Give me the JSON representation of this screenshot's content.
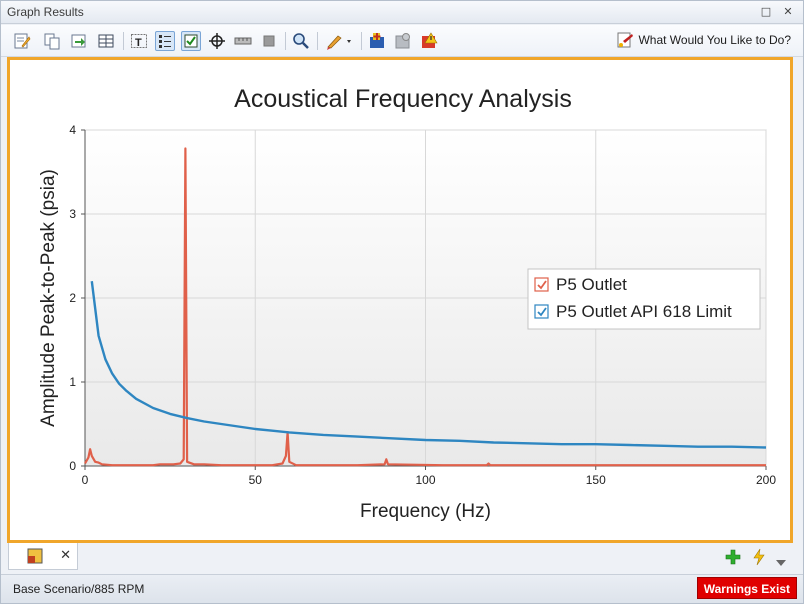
{
  "window": {
    "title": "Graph Results",
    "btn_restore": "□",
    "btn_close": "✕"
  },
  "toolbar": {
    "help_label": "What Would You Like to Do?",
    "icons": [
      "edit-icon",
      "copy-icon",
      "export-icon",
      "table-icon",
      "text-icon",
      "legend-icon",
      "checkbox-icon",
      "crosshair-icon",
      "ruler-icon",
      "stop-icon",
      "zoom-icon",
      "pen-icon",
      "add-graph-icon",
      "gear-icon",
      "warning-icon"
    ]
  },
  "chart_data": {
    "type": "line",
    "title": "Acoustical Frequency Analysis",
    "xlabel": "Frequency (Hz)",
    "ylabel": "Amplitude Peak-to-Peak (psia)",
    "xlim": [
      0,
      200
    ],
    "ylim": [
      0,
      4
    ],
    "xticks": [
      "0",
      "50",
      "100",
      "150",
      "200"
    ],
    "yticks": [
      "0",
      "1",
      "2",
      "3",
      "4"
    ],
    "grid": true,
    "legend_position": "right",
    "series": [
      {
        "name": "P5 Outlet",
        "color": "#e0604a",
        "checked": true,
        "points": [
          [
            0,
            0.03
          ],
          [
            1,
            0.1
          ],
          [
            1.5,
            0.2
          ],
          [
            2,
            0.12
          ],
          [
            3,
            0.05
          ],
          [
            4,
            0.04
          ],
          [
            5,
            0.02
          ],
          [
            8,
            0.01
          ],
          [
            15,
            0.01
          ],
          [
            20,
            0.01
          ],
          [
            22,
            0.02
          ],
          [
            26,
            0.02
          ],
          [
            28,
            0.03
          ],
          [
            29,
            0.08
          ],
          [
            29.5,
            3.78
          ],
          [
            30,
            0.05
          ],
          [
            32,
            0.02
          ],
          [
            35,
            0.02
          ],
          [
            40,
            0.01
          ],
          [
            55,
            0.01
          ],
          [
            58,
            0.03
          ],
          [
            59,
            0.12
          ],
          [
            59.5,
            0.4
          ],
          [
            60,
            0.05
          ],
          [
            62,
            0.01
          ],
          [
            80,
            0.01
          ],
          [
            88,
            0.02
          ],
          [
            88.5,
            0.08
          ],
          [
            89,
            0.02
          ],
          [
            105,
            0.01
          ],
          [
            118,
            0.01
          ],
          [
            118.5,
            0.03
          ],
          [
            119,
            0.01
          ],
          [
            150,
            0.01
          ],
          [
            200,
            0.01
          ]
        ]
      },
      {
        "name": "P5 Outlet API 618 Limit",
        "color": "#2e86c1",
        "checked": true,
        "points": [
          [
            2,
            2.2
          ],
          [
            4,
            1.55
          ],
          [
            6,
            1.27
          ],
          [
            8,
            1.1
          ],
          [
            10,
            0.98
          ],
          [
            12,
            0.9
          ],
          [
            15,
            0.8
          ],
          [
            20,
            0.69
          ],
          [
            25,
            0.62
          ],
          [
            30,
            0.57
          ],
          [
            35,
            0.53
          ],
          [
            40,
            0.5
          ],
          [
            45,
            0.47
          ],
          [
            50,
            0.44
          ],
          [
            55,
            0.42
          ],
          [
            60,
            0.4
          ],
          [
            70,
            0.37
          ],
          [
            80,
            0.35
          ],
          [
            90,
            0.33
          ],
          [
            100,
            0.31
          ],
          [
            110,
            0.3
          ],
          [
            120,
            0.28
          ],
          [
            130,
            0.27
          ],
          [
            140,
            0.26
          ],
          [
            150,
            0.26
          ],
          [
            160,
            0.25
          ],
          [
            170,
            0.24
          ],
          [
            180,
            0.23
          ],
          [
            190,
            0.23
          ],
          [
            200,
            0.22
          ]
        ]
      }
    ]
  },
  "tab": {
    "close": "✕"
  },
  "status": {
    "text": "Base Scenario/885 RPM",
    "warning": "Warnings Exist"
  }
}
